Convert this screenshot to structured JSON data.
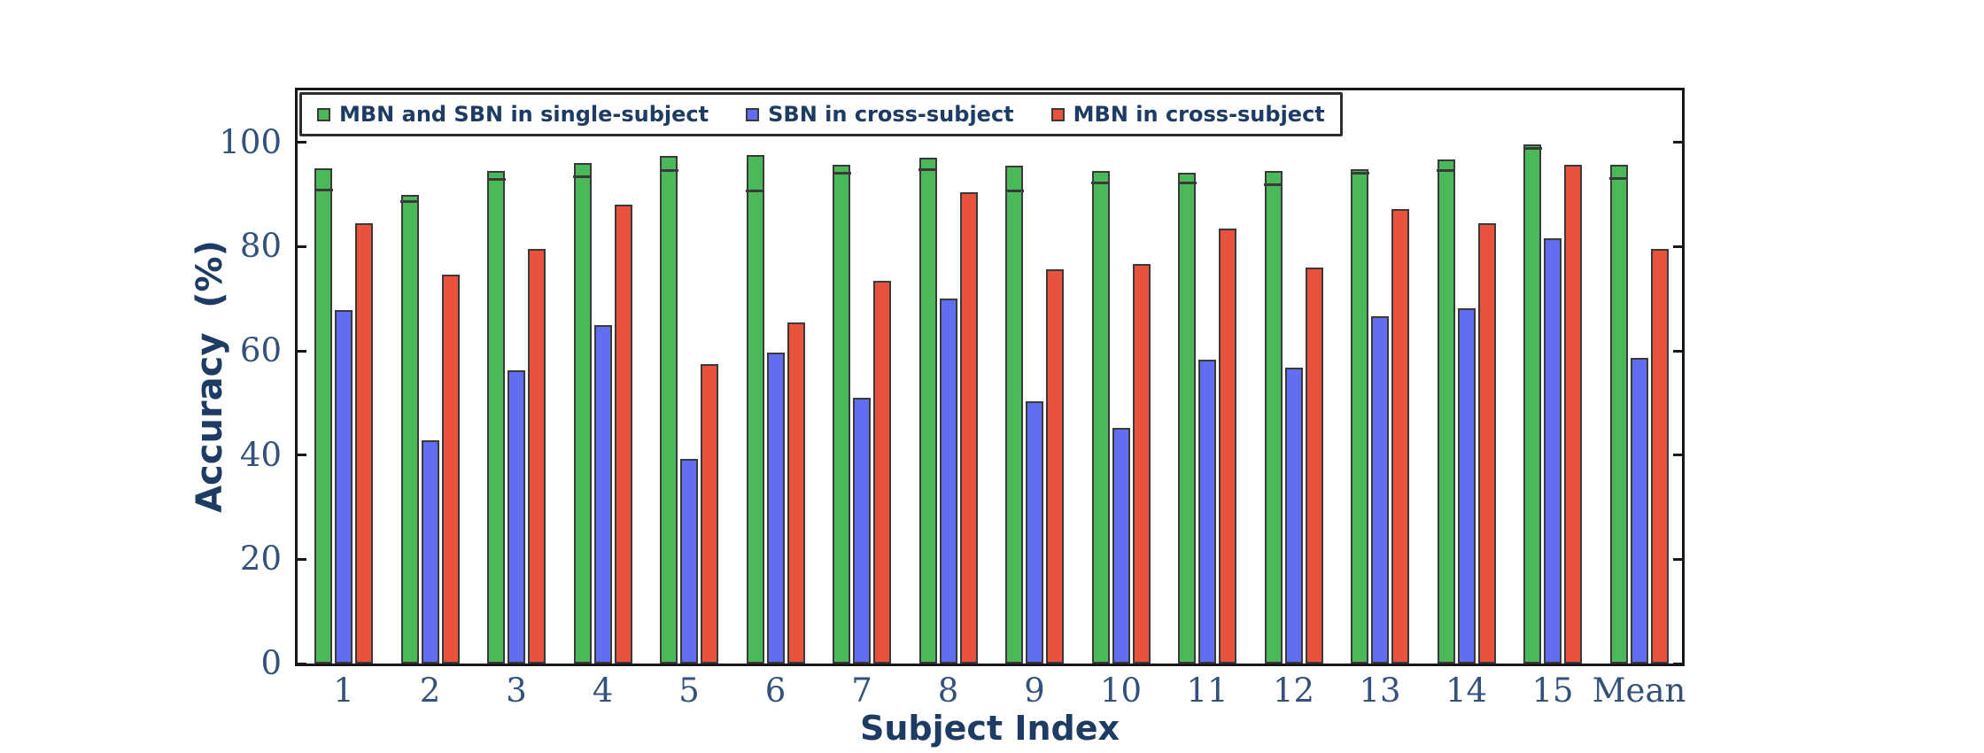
{
  "figure": {
    "xlabel": "Subject Index",
    "ylabel": "Accuracy  (%)"
  },
  "colors": {
    "background": "#ffffff",
    "axis_spine": "#17171c",
    "tick_label": "#33517a",
    "axis_label": "#1e3c63",
    "legend_text": "#1e3c63",
    "legend_border": "#2e2e2e",
    "bar_edge": "#3a3a3a",
    "single_subject_green": "#4bb85a",
    "sbn_cross_blue": "#636df2",
    "mbn_cross_red": "#e9523c"
  },
  "chart_data": {
    "type": "bar",
    "title": "",
    "xlabel": "Subject Index",
    "ylabel": "Accuracy (%)",
    "categories": [
      "1",
      "2",
      "3",
      "4",
      "5",
      "6",
      "7",
      "8",
      "9",
      "10",
      "11",
      "12",
      "13",
      "14",
      "15",
      "Mean"
    ],
    "ylim": [
      0,
      110
    ],
    "yticks": [
      0,
      20,
      40,
      60,
      80,
      100
    ],
    "grid": false,
    "legend_position": "upper left inside",
    "series": [
      {
        "name": "MBN and SBN in single-subject",
        "color": "#4bb85a",
        "values": [
          95.0,
          90.0,
          94.5,
          96.1,
          97.5,
          97.6,
          95.8,
          97.0,
          95.5,
          94.6,
          94.2,
          94.6,
          94.8,
          96.8,
          99.6,
          95.8
        ],
        "secondary_values": [
          91.2,
          89.0,
          93.3,
          93.8,
          94.9,
          91.0,
          94.4,
          95.2,
          91.1,
          92.5,
          92.6,
          92.2,
          94.4,
          94.9,
          99.2,
          93.4
        ]
      },
      {
        "name": "SBN in cross-subject",
        "color": "#636df2",
        "values": [
          67.8,
          42.9,
          56.2,
          65.0,
          39.3,
          59.6,
          51.0,
          70.0,
          50.3,
          45.2,
          58.3,
          56.8,
          66.6,
          68.2,
          81.6,
          58.6
        ]
      },
      {
        "name": "MBN in cross-subject",
        "color": "#e9523c",
        "values": [
          84.5,
          74.6,
          79.5,
          88.0,
          57.5,
          65.4,
          73.4,
          90.4,
          75.6,
          76.6,
          83.5,
          76.0,
          87.3,
          84.5,
          95.8,
          79.6
        ]
      }
    ]
  }
}
